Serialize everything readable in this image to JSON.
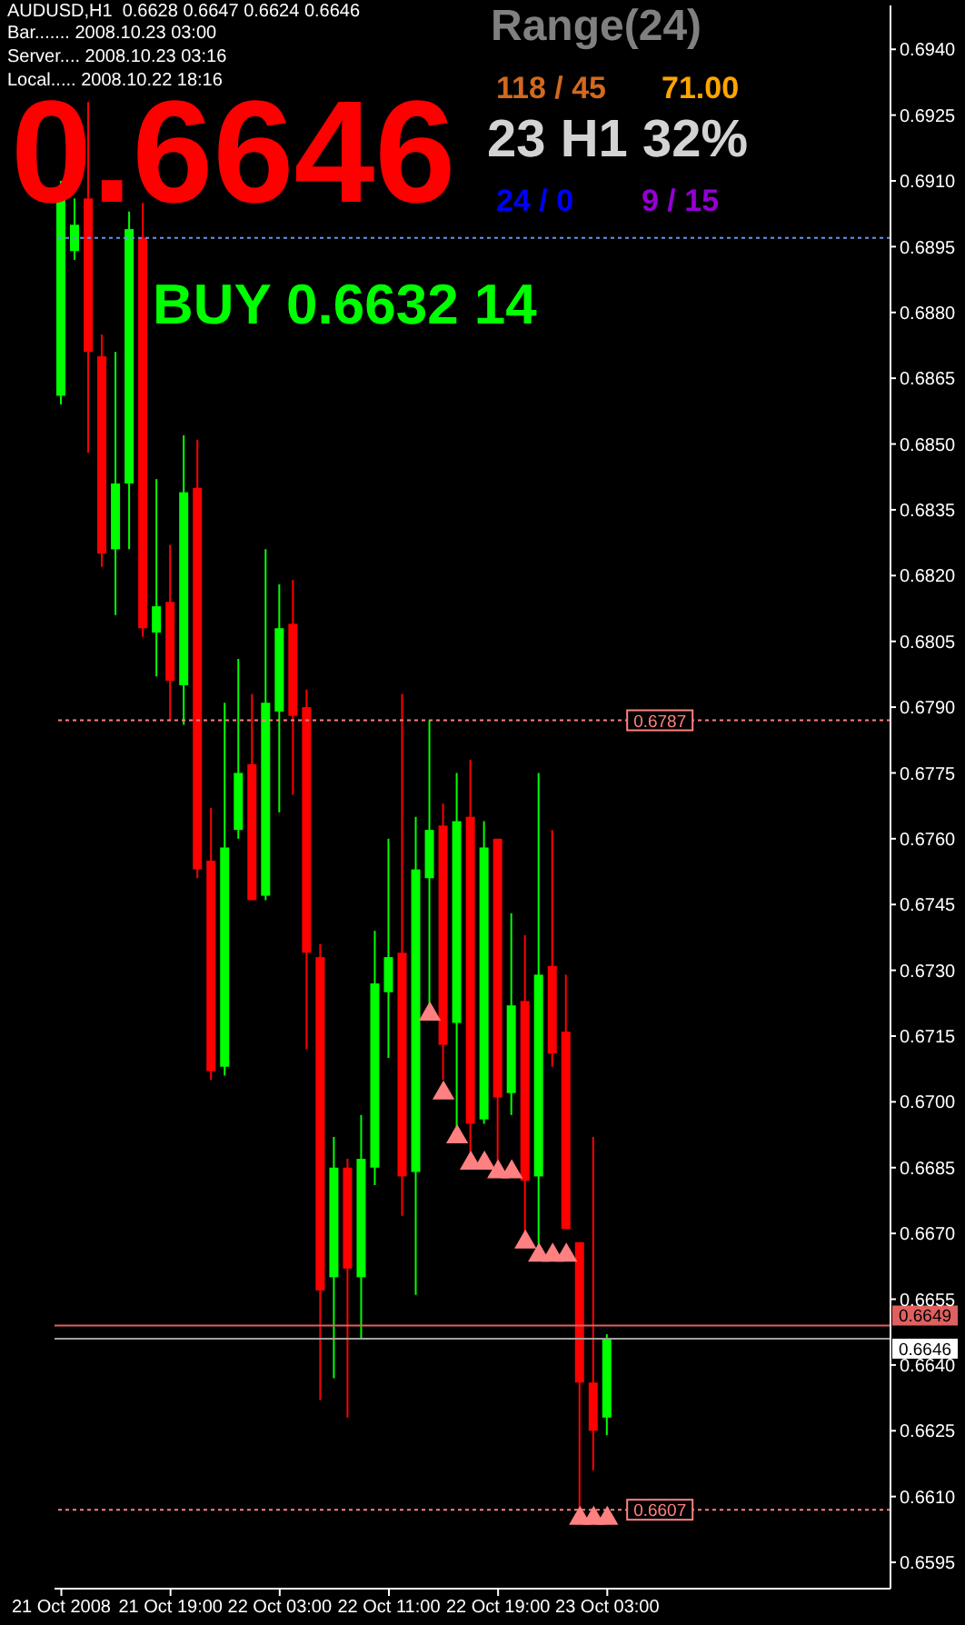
{
  "chart_data": {
    "type": "candlestick",
    "title": "AUDUSD,H1  0.6628 0.6647 0.6624 0.6646",
    "annotations": [
      "Bar....... 2008.10.23 03:00",
      "Server.... 2008.10.23 03:16",
      "Local..... 2008.10.22 18:16",
      "0.6646",
      "BUY 0.6632 14",
      "Range(24)",
      "118 / 45",
      "71.00",
      "23 H1 32%",
      "24 / 0",
      "9 / 15"
    ],
    "x": [
      "2008-10-21T11:00",
      "2008-10-21T12:00",
      "2008-10-21T13:00",
      "2008-10-21T14:00",
      "2008-10-21T15:00",
      "2008-10-21T16:00",
      "2008-10-21T17:00",
      "2008-10-21T18:00",
      "2008-10-21T19:00",
      "2008-10-21T20:00",
      "2008-10-21T21:00",
      "2008-10-21T22:00",
      "2008-10-21T23:00",
      "2008-10-22T00:00",
      "2008-10-22T01:00",
      "2008-10-22T02:00",
      "2008-10-22T03:00",
      "2008-10-22T04:00",
      "2008-10-22T05:00",
      "2008-10-22T06:00",
      "2008-10-22T07:00",
      "2008-10-22T08:00",
      "2008-10-22T09:00",
      "2008-10-22T10:00",
      "2008-10-22T11:00",
      "2008-10-22T12:00",
      "2008-10-22T13:00",
      "2008-10-22T14:00",
      "2008-10-22T15:00",
      "2008-10-22T16:00",
      "2008-10-22T17:00",
      "2008-10-22T18:00",
      "2008-10-22T19:00",
      "2008-10-22T20:00",
      "2008-10-22T21:00",
      "2008-10-22T22:00",
      "2008-10-22T23:00",
      "2008-10-23T00:00",
      "2008-10-23T01:00",
      "2008-10-23T02:00",
      "2008-10-23T03:00"
    ],
    "ohlc": [
      [
        0.6861,
        0.691,
        0.6859,
        0.6908
      ],
      [
        0.6894,
        0.6906,
        0.6892,
        0.69
      ],
      [
        0.6906,
        0.6928,
        0.6848,
        0.6871
      ],
      [
        0.687,
        0.6875,
        0.6822,
        0.6825
      ],
      [
        0.6826,
        0.6871,
        0.6811,
        0.6841
      ],
      [
        0.6841,
        0.6903,
        0.6826,
        0.6899
      ],
      [
        0.6897,
        0.6905,
        0.6806,
        0.6808
      ],
      [
        0.6807,
        0.6842,
        0.6797,
        0.6813
      ],
      [
        0.6814,
        0.6827,
        0.6787,
        0.6796
      ],
      [
        0.6795,
        0.6852,
        0.6786,
        0.6839
      ],
      [
        0.684,
        0.6851,
        0.6751,
        0.6753
      ],
      [
        0.6755,
        0.6767,
        0.6705,
        0.6707
      ],
      [
        0.6708,
        0.6791,
        0.6706,
        0.6758
      ],
      [
        0.6762,
        0.6801,
        0.676,
        0.6775
      ],
      [
        0.6777,
        0.6793,
        0.6746,
        0.6746
      ],
      [
        0.6747,
        0.6826,
        0.6746,
        0.6791
      ],
      [
        0.6789,
        0.6818,
        0.6766,
        0.6808
      ],
      [
        0.6809,
        0.6819,
        0.677,
        0.6788
      ],
      [
        0.679,
        0.6794,
        0.6712,
        0.6734
      ],
      [
        0.6733,
        0.6736,
        0.6632,
        0.6657
      ],
      [
        0.666,
        0.6692,
        0.6637,
        0.6685
      ],
      [
        0.6685,
        0.6687,
        0.6628,
        0.6662
      ],
      [
        0.666,
        0.6697,
        0.6646,
        0.6687
      ],
      [
        0.6685,
        0.6739,
        0.6681,
        0.6727
      ],
      [
        0.6725,
        0.676,
        0.671,
        0.6733
      ],
      [
        0.6734,
        0.6793,
        0.6674,
        0.6683
      ],
      [
        0.6684,
        0.6765,
        0.6656,
        0.6753
      ],
      [
        0.6751,
        0.6787,
        0.6722,
        0.6762
      ],
      [
        0.6763,
        0.6768,
        0.6705,
        0.6713
      ],
      [
        0.6718,
        0.6775,
        0.6694,
        0.6764
      ],
      [
        0.6765,
        0.6778,
        0.6688,
        0.6695
      ],
      [
        0.6696,
        0.6764,
        0.6695,
        0.6758
      ],
      [
        0.676,
        0.676,
        0.6686,
        0.6701
      ],
      [
        0.6702,
        0.6743,
        0.6697,
        0.6722
      ],
      [
        0.6723,
        0.6738,
        0.667,
        0.6682
      ],
      [
        0.6683,
        0.6775,
        0.6667,
        0.6729
      ],
      [
        0.6731,
        0.6762,
        0.6708,
        0.6711
      ],
      [
        0.6716,
        0.6729,
        0.6671,
        0.6671
      ],
      [
        0.6668,
        0.6668,
        0.6607,
        0.6636
      ],
      [
        0.6636,
        0.6692,
        0.6616,
        0.6625
      ],
      [
        0.6628,
        0.6647,
        0.6624,
        0.6646
      ]
    ],
    "colors": [
      "#00ff00",
      "#00ff00",
      "#ff0000",
      "#ff0000",
      "#00ff00",
      "#00ff00",
      "#ff0000",
      "#00ff00",
      "#ff0000",
      "#00ff00",
      "#ff0000",
      "#ff0000",
      "#00ff00",
      "#00ff00",
      "#ff0000",
      "#00ff00",
      "#00ff00",
      "#ff0000",
      "#ff0000",
      "#ff0000",
      "#00ff00",
      "#ff0000",
      "#00ff00",
      "#00ff00",
      "#00ff00",
      "#ff0000",
      "#00ff00",
      "#00ff00",
      "#ff0000",
      "#00ff00",
      "#ff0000",
      "#00ff00",
      "#ff0000",
      "#00ff00",
      "#ff0000",
      "#00ff00",
      "#ff0000",
      "#ff0000",
      "#ff0000",
      "#ff0000",
      "#00ff00"
    ],
    "series": [
      {
        "type": "scatter",
        "color": "#ff8080",
        "marker": "triangle",
        "values": [
          null,
          null,
          null,
          null,
          null,
          null,
          null,
          null,
          null,
          null,
          null,
          null,
          null,
          null,
          null,
          null,
          null,
          null,
          null,
          null,
          null,
          null,
          null,
          null,
          null,
          null,
          null,
          0.672,
          0.6702,
          0.6692,
          0.6686,
          0.6686,
          0.6684,
          0.6684,
          0.6668,
          0.6665,
          0.6665,
          0.6665,
          0.6605,
          0.6605,
          0.6605
        ]
      }
    ],
    "ref_lines": [
      {
        "axis": "y",
        "value": 0.6897,
        "color": "#6495ed",
        "line_style": "dotted"
      },
      {
        "axis": "y",
        "value": 0.6787,
        "label": "0.6787",
        "color": "#ff8080",
        "line_style": "dotted"
      },
      {
        "axis": "y",
        "value": 0.6607,
        "label": "0.6607",
        "color": "#ff8080",
        "line_style": "dotted"
      },
      {
        "axis": "y",
        "value": 0.6649,
        "label": "0.6649",
        "color": "#e06060",
        "line_style": "solid"
      },
      {
        "axis": "y",
        "value": 0.6646,
        "label": "0.6646",
        "color": "#a0a0a0",
        "line_style": "solid"
      }
    ],
    "xlim": [
      "2008-10-21T10:30",
      "2008-10-23T23:45"
    ],
    "xticks": [
      {
        "value": "2008-10-21T11:00",
        "label": "21 Oct 2008"
      },
      {
        "value": "2008-10-21T19:00",
        "label": "21 Oct 19:00"
      },
      {
        "value": "2008-10-22T03:00",
        "label": "22 Oct 03:00"
      },
      {
        "value": "2008-10-22T11:00",
        "label": "22 Oct 11:00"
      },
      {
        "value": "2008-10-22T19:00",
        "label": "22 Oct 19:00"
      },
      {
        "value": "2008-10-23T03:00",
        "label": "23 Oct 03:00"
      }
    ],
    "ylim": [
      0.6589,
      0.695
    ],
    "yticks": [
      0.6595,
      {
        "value": 0.661,
        "label": "0.6610"
      },
      0.6625,
      {
        "value": 0.664,
        "label": "0.6640"
      },
      0.6655,
      {
        "value": 0.667,
        "label": "0.6670"
      },
      0.6685,
      {
        "value": 0.67,
        "label": "0.6700"
      },
      0.6715,
      {
        "value": 0.673,
        "label": "0.6730"
      },
      0.6745,
      {
        "value": 0.676,
        "label": "0.6760"
      },
      0.6775,
      {
        "value": 0.679,
        "label": "0.6790"
      },
      0.6805,
      {
        "value": 0.682,
        "label": "0.6820"
      },
      0.6835,
      {
        "value": 0.685,
        "label": "0.6850"
      },
      0.6865,
      {
        "value": 0.688,
        "label": "0.6880"
      },
      0.6895,
      {
        "value": 0.691,
        "label": "0.6910"
      },
      0.6925,
      {
        "value": 0.694,
        "label": "0.6940"
      }
    ]
  }
}
